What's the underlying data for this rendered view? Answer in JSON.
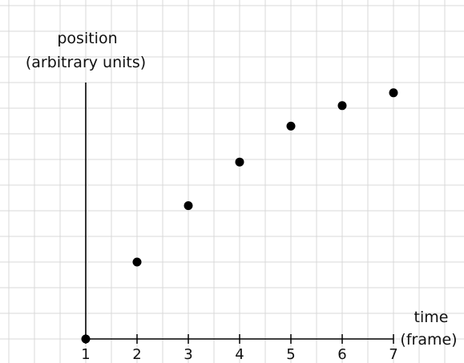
{
  "chart_data": {
    "type": "scatter",
    "x": [
      1,
      2,
      3,
      4,
      5,
      6,
      7
    ],
    "y": [
      0,
      3.0,
      5.2,
      6.9,
      8.3,
      9.1,
      9.6
    ],
    "xlabel": [
      "time",
      "(frame)"
    ],
    "ylabel": [
      "position",
      "(arbitrary units)"
    ],
    "x_ticks": [
      "1",
      "2",
      "3",
      "4",
      "5",
      "6",
      "7"
    ],
    "xlim": [
      1,
      7
    ],
    "ylim": [
      0,
      10
    ],
    "grid": true,
    "colors": {
      "points": "#000000",
      "axes": "#000000",
      "grid": "#d8d8d8"
    }
  }
}
